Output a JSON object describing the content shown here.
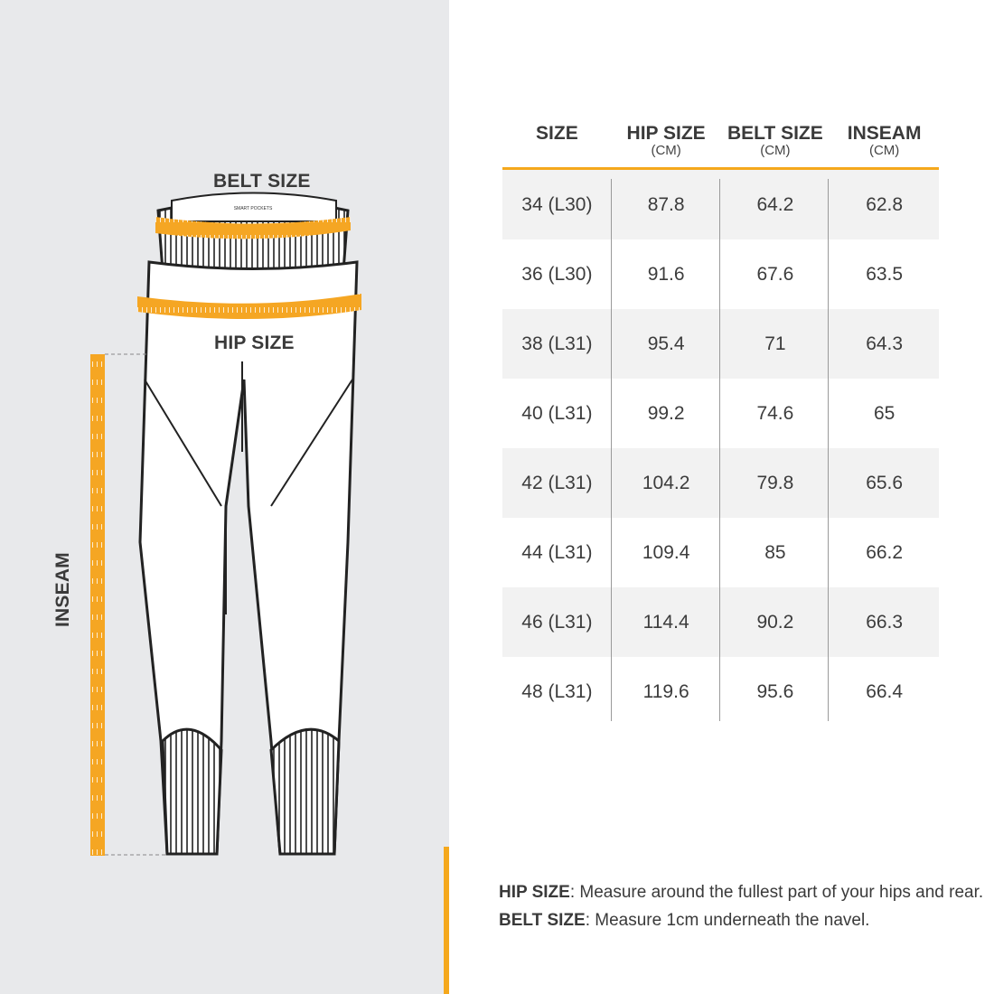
{
  "illustration": {
    "belt_label": "BELT SIZE",
    "hip_label": "HIP SIZE",
    "inseam_label": "INSEAM",
    "waistband_tag": "SMART POCKETS",
    "tape_color": "#f5a623"
  },
  "table": {
    "headers": [
      {
        "main": "SIZE",
        "sub": ""
      },
      {
        "main": "HIP SIZE",
        "sub": "(CM)"
      },
      {
        "main": "BELT SIZE",
        "sub": "(CM)"
      },
      {
        "main": "INSEAM",
        "sub": "(CM)"
      }
    ],
    "rows": [
      [
        "34 (L30)",
        "87.8",
        "64.2",
        "62.8"
      ],
      [
        "36 (L30)",
        "91.6",
        "67.6",
        "63.5"
      ],
      [
        "38 (L31)",
        "95.4",
        "71",
        "64.3"
      ],
      [
        "40 (L31)",
        "99.2",
        "74.6",
        "65"
      ],
      [
        "42 (L31)",
        "104.2",
        "79.8",
        "65.6"
      ],
      [
        "44 (L31)",
        "109.4",
        "85",
        "66.2"
      ],
      [
        "46 (L31)",
        "114.4",
        "90.2",
        "66.3"
      ],
      [
        "48 (L31)",
        "119.6",
        "95.6",
        "66.4"
      ]
    ],
    "accent_color": "#f5a81c"
  },
  "notes": [
    {
      "term": "HIP SIZE",
      "text": ": Measure around the fullest part of your hips and rear."
    },
    {
      "term": "BELT SIZE",
      "text": ": Measure 1cm underneath the navel."
    }
  ]
}
